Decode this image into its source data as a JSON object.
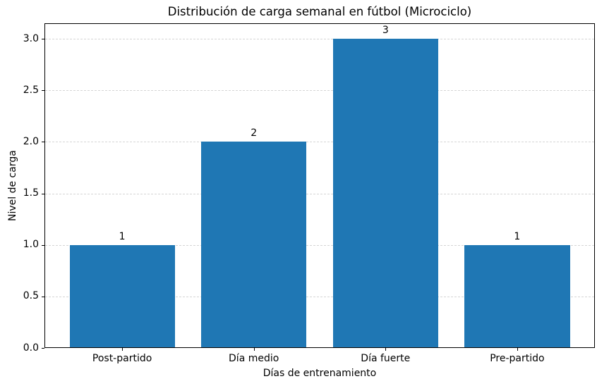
{
  "chart_data": {
    "type": "bar",
    "title": "Distribución de carga semanal en fútbol (Microciclo)",
    "xlabel": "Días de entrenamiento",
    "ylabel": "Nivel de carga",
    "categories": [
      "Post-partido",
      "Día medio",
      "Día fuerte",
      "Pre-partido"
    ],
    "values": [
      1,
      2,
      3,
      1
    ],
    "bar_value_labels": [
      "1",
      "2",
      "3",
      "1"
    ],
    "ytick_labels": [
      "0.0",
      "0.5",
      "1.0",
      "1.5",
      "2.0",
      "2.5",
      "3.0"
    ],
    "yticks": [
      0,
      0.5,
      1,
      1.5,
      2,
      2.5,
      3
    ],
    "ylim": [
      0,
      3.15
    ],
    "xlim": [
      -0.59,
      3.59
    ],
    "bar_width": 0.8,
    "grid": {
      "axis": "y",
      "style": "dashed",
      "color": "#d5d5d5"
    },
    "colors": {
      "bar": "#1f77b4",
      "text": "#000000",
      "spine": "#000000",
      "background": "#ffffff"
    }
  }
}
